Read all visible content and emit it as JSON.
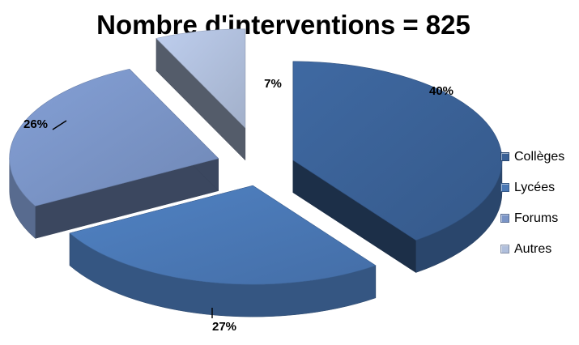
{
  "chart_data": {
    "type": "pie",
    "title": "Nombre d'interventions = 825",
    "categories": [
      "Collèges",
      "Lycées",
      "Forums",
      "Autres"
    ],
    "values": [
      40,
      27,
      26,
      7
    ],
    "labels": [
      "40%",
      "27%",
      "26%",
      "7%"
    ],
    "colors": [
      "#3A6196",
      "#4A78B5",
      "#7A94C6",
      "#B0BFDC"
    ],
    "style": "3d-exploded",
    "legend_position": "right"
  }
}
